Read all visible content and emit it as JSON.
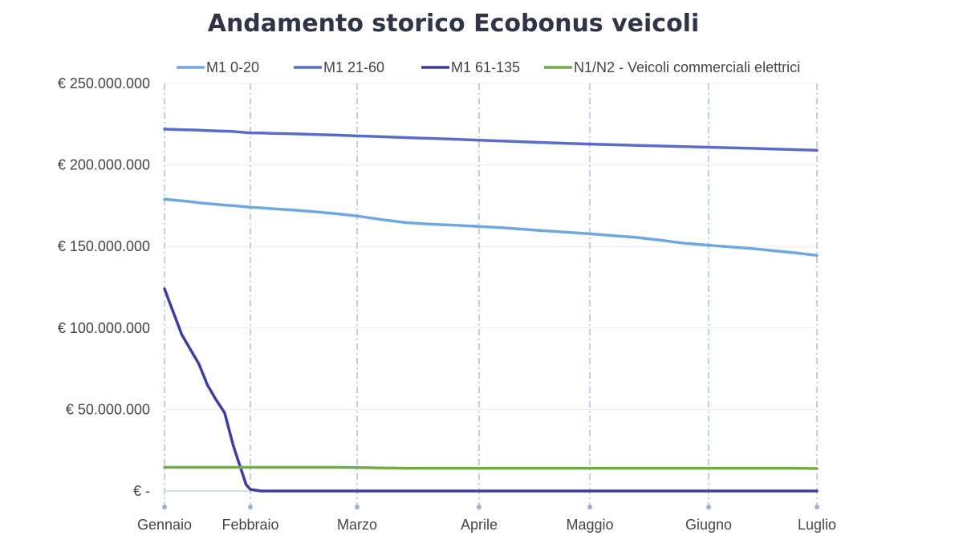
{
  "chart_data": {
    "type": "line",
    "title": "Andamento storico Ecobonus veicoli",
    "xlabel": "",
    "ylabel": "",
    "x_ticks": [
      "Gennaio",
      "Febbraio",
      "Marzo",
      "Aprile",
      "Maggio",
      "Giugno",
      "Luglio"
    ],
    "x": [
      0,
      0.05,
      0.1,
      0.15,
      0.2,
      0.3,
      0.4,
      0.5,
      0.6,
      0.7,
      0.8,
      0.85,
      0.9,
      0.95,
      1.0,
      1.1,
      1.2,
      1.4,
      1.6,
      1.8,
      2.0,
      2.2,
      2.4,
      2.6,
      2.8,
      3.0,
      3.2,
      3.4,
      3.6,
      3.8,
      4.0,
      4.2,
      4.4,
      4.6,
      4.8,
      5.0,
      5.2,
      5.4,
      5.6,
      5.8,
      6.0
    ],
    "ylim": [
      0,
      250000000
    ],
    "y_ticks": [
      "€ -",
      "€ 50.000.000",
      "€ 100.000.000",
      "€ 150.000.000",
      "€ 200.000.000",
      "€ 250.000.000"
    ],
    "legend_position": "top",
    "series": [
      {
        "name": "M1 0-20",
        "color": "#6fa8e0",
        "values": [
          179000000,
          178800000,
          178500000,
          178200000,
          178000000,
          177500000,
          176800000,
          176300000,
          175900000,
          175400000,
          175000000,
          174800000,
          174500000,
          174300000,
          174000000,
          173700000,
          173200000,
          172400000,
          171300000,
          170200000,
          168700000,
          166500000,
          164600000,
          163700000,
          163000000,
          162300000,
          161500000,
          160600000,
          159600000,
          158700000,
          157800000,
          156600000,
          155500000,
          153800000,
          151900000,
          150800000,
          149700000,
          148700000,
          147400000,
          146100000,
          144500000
        ]
      },
      {
        "name": "M1 21-60",
        "color": "#5a6cc9",
        "values": [
          222000000,
          221900000,
          221800000,
          221700000,
          221600000,
          221500000,
          221300000,
          221100000,
          220900000,
          220700000,
          220500000,
          220300000,
          220100000,
          219900000,
          219700000,
          219600000,
          219400000,
          219100000,
          218700000,
          218300000,
          217800000,
          217300000,
          216800000,
          216300000,
          215800000,
          215200000,
          214700000,
          214200000,
          213700000,
          213200000,
          212800000,
          212400000,
          212000000,
          211600000,
          211200000,
          210900000,
          210500000,
          210200000,
          209800000,
          209400000,
          209000000
        ]
      },
      {
        "name": "M1 61-135",
        "color": "#3d3f9f",
        "values": [
          124000000,
          117000000,
          110000000,
          103000000,
          96000000,
          87000000,
          78000000,
          65000000,
          56000000,
          48000000,
          28000000,
          20000000,
          12000000,
          4000000,
          1000000,
          0,
          0,
          0,
          0,
          0,
          0,
          0,
          0,
          0,
          0,
          0,
          0,
          0,
          0,
          0,
          0,
          0,
          0,
          0,
          0,
          0,
          0,
          0,
          0,
          0,
          0
        ]
      },
      {
        "name": "N1/N2 - Veicoli commerciali elettrici",
        "color": "#70ad47",
        "values": [
          14500000,
          14500000,
          14500000,
          14500000,
          14500000,
          14500000,
          14500000,
          14500000,
          14500000,
          14500000,
          14500000,
          14500000,
          14500000,
          14500000,
          14500000,
          14500000,
          14500000,
          14500000,
          14500000,
          14500000,
          14400000,
          14100000,
          14000000,
          14000000,
          14000000,
          14000000,
          14000000,
          14000000,
          14000000,
          14000000,
          14000000,
          14000000,
          14000000,
          14000000,
          14000000,
          14000000,
          14000000,
          14000000,
          14000000,
          14000000,
          13800000
        ]
      }
    ]
  }
}
